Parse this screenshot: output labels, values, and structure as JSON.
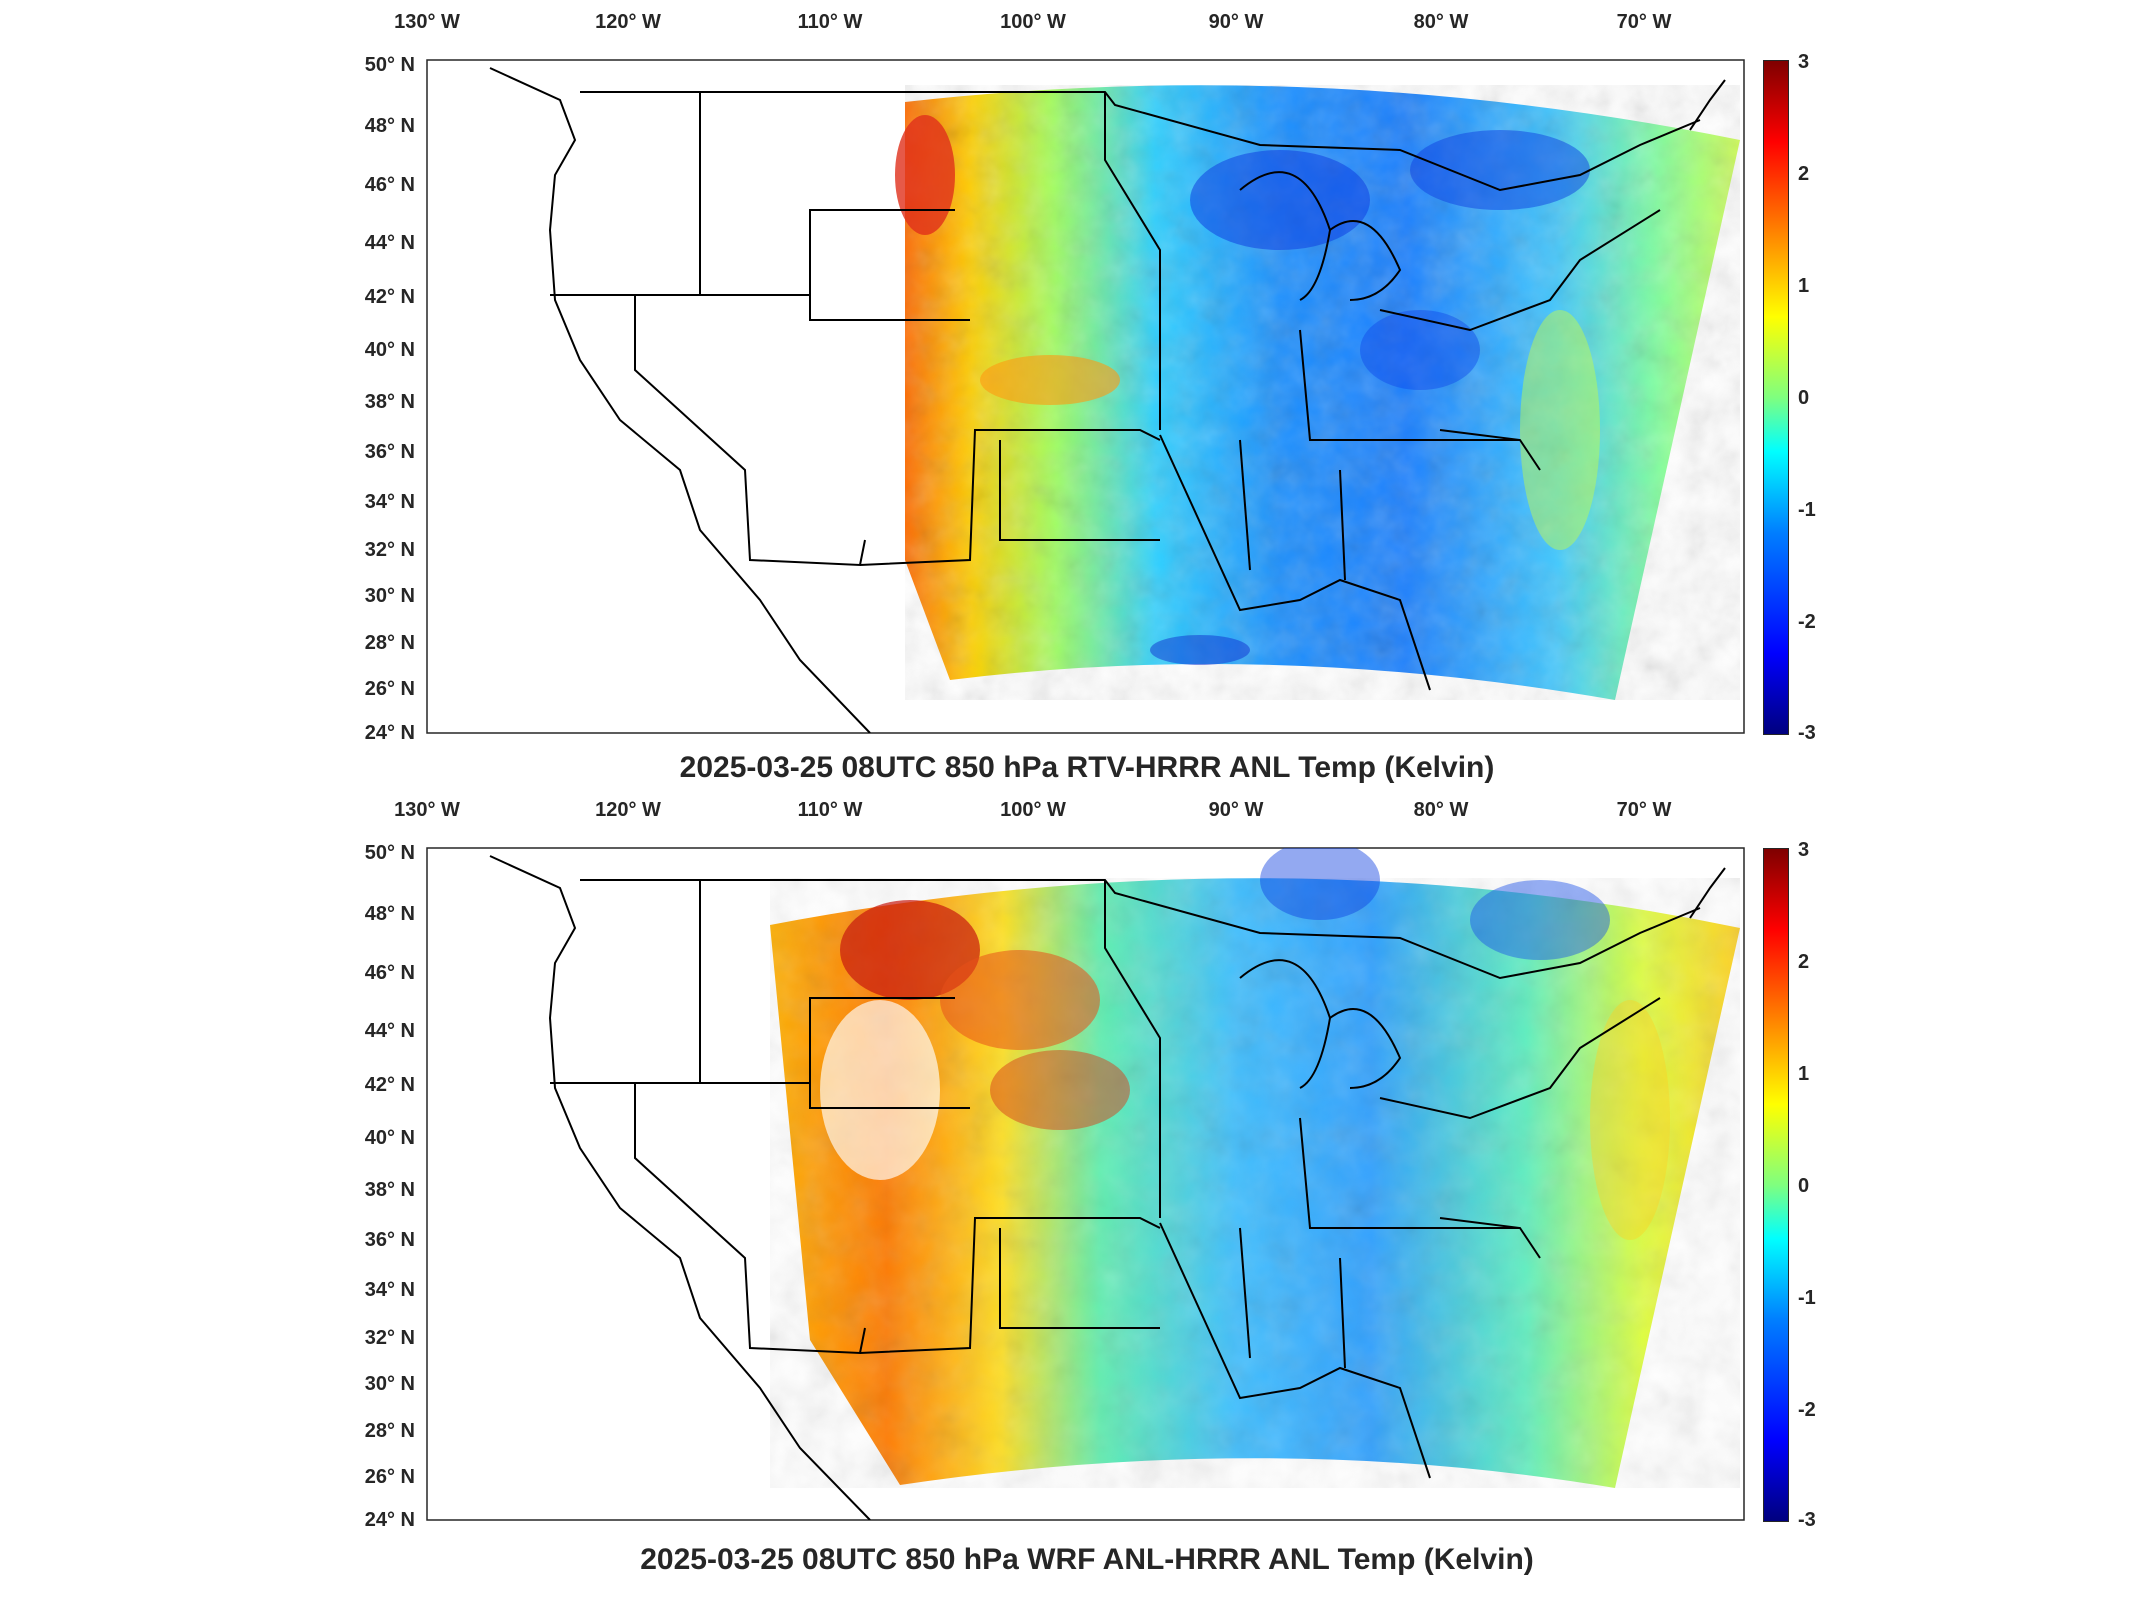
{
  "panels": [
    {
      "title": "2025-03-25 08UTC 850 hPa RTV-HRRR ANL Temp (Kelvin)",
      "lon_labels": [
        "130° W",
        "120° W",
        "110° W",
        "100° W",
        "90° W",
        "80° W",
        "70° W"
      ],
      "lat_labels": [
        "50° N",
        "48° N",
        "46° N",
        "44° N",
        "42° N",
        "40° N",
        "38° N",
        "36° N",
        "34° N",
        "32° N",
        "30° N",
        "28° N",
        "26° N",
        "24° N"
      ],
      "colorbar_ticks": [
        "3",
        "2",
        "1",
        "0",
        "-1",
        "-2",
        "-3"
      ]
    },
    {
      "title": "2025-03-25 08UTC 850 hPa WRF ANL-HRRR ANL Temp (Kelvin)",
      "lon_labels": [
        "130° W",
        "120° W",
        "110° W",
        "100° W",
        "90° W",
        "80° W",
        "70° W"
      ],
      "lat_labels": [
        "50° N",
        "48° N",
        "46° N",
        "44° N",
        "42° N",
        "40° N",
        "38° N",
        "36° N",
        "34° N",
        "32° N",
        "30° N",
        "28° N",
        "26° N",
        "24° N"
      ],
      "colorbar_ticks": [
        "3",
        "2",
        "1",
        "0",
        "-1",
        "-2",
        "-3"
      ]
    }
  ],
  "colormap": {
    "name": "jet",
    "min": -3,
    "max": 3,
    "colors": [
      "#00007f",
      "#0000ff",
      "#007fff",
      "#00ffff",
      "#7fff7f",
      "#ffff00",
      "#ff7f00",
      "#ff0000",
      "#7f0000"
    ]
  },
  "map_extent": {
    "lon_min": -131,
    "lon_max": -65,
    "lat_min": 24,
    "lat_max": 50
  }
}
